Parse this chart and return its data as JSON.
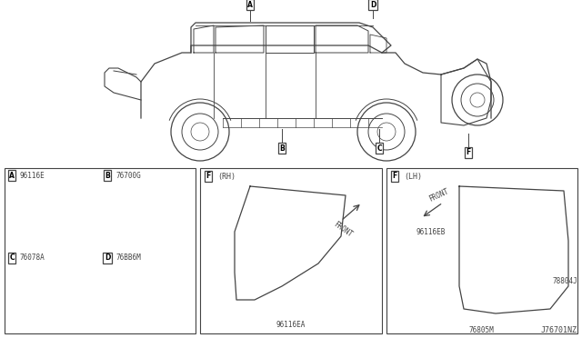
{
  "bg_color": "#ffffff",
  "diagram_label": "J76701NZ",
  "line_color": "#444444",
  "parts_labels": [
    "A",
    "B",
    "C",
    "D"
  ],
  "parts_nos": [
    "96116E",
    "76700G",
    "76078A",
    "76BB6M"
  ],
  "rh_part": "96116EA",
  "lh_parts": [
    "96116EB",
    "76805M",
    "78804J"
  ]
}
